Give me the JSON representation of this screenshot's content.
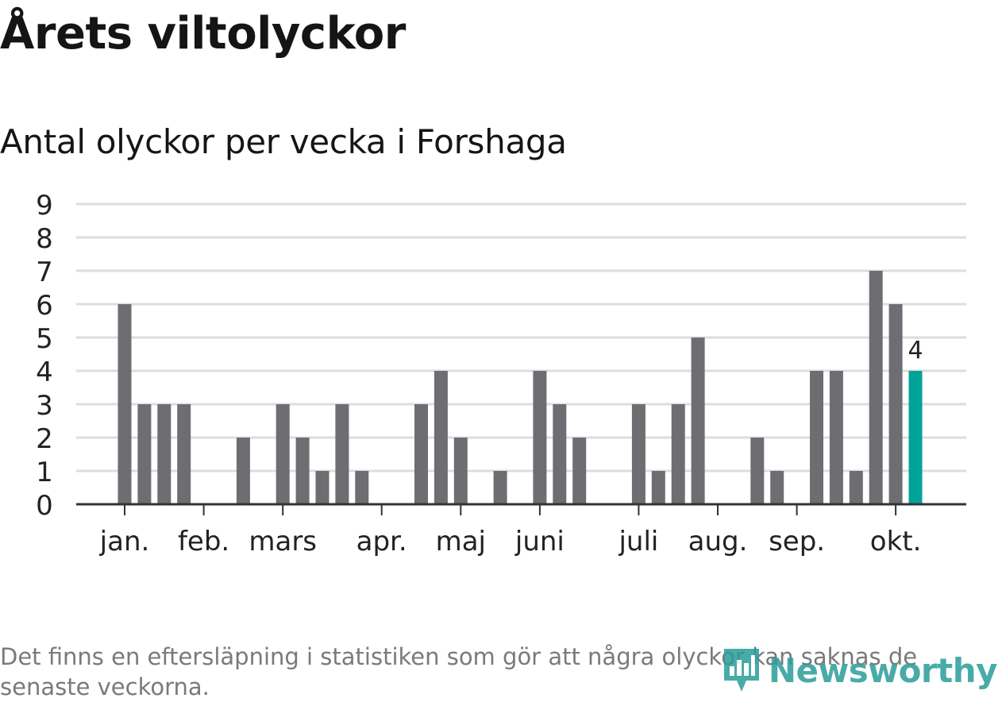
{
  "title": "Årets viltolyckor",
  "subtitle": "Antal olyckor per vecka i Forshaga",
  "footnote": "Det finns en eftersläpning i statistiken som gör att några olyckor kan saknas de senaste veckorna.",
  "logo": {
    "text": "Newsworthy",
    "icon": "bar-chart-pin-icon"
  },
  "colors": {
    "bar": "#6e6d72",
    "highlight": "#00a39a",
    "grid": "#dddddd",
    "axis": "#333333",
    "text": "#222222",
    "logo": "#2a9d9a"
  },
  "chart_data": {
    "type": "bar",
    "title": "Årets viltolyckor",
    "subtitle": "Antal olyckor per vecka i Forshaga",
    "xlabel": "",
    "ylabel": "",
    "ylim": [
      0,
      9
    ],
    "yticks": [
      "0",
      "1",
      "2",
      "3",
      "4",
      "5",
      "6",
      "7",
      "8",
      "9"
    ],
    "grid": true,
    "values": [
      6,
      3,
      3,
      3,
      0,
      0,
      2,
      0,
      3,
      2,
      1,
      3,
      1,
      0,
      0,
      3,
      4,
      2,
      0,
      1,
      0,
      4,
      3,
      2,
      0,
      0,
      3,
      1,
      3,
      5,
      0,
      0,
      2,
      1,
      0,
      4,
      4,
      1,
      7,
      6,
      4
    ],
    "highlight_index": 40,
    "highlight_label": "4",
    "month_ticks": [
      {
        "label": "jan.",
        "week_pos": 0.0
      },
      {
        "label": "feb.",
        "week_pos": 4.0
      },
      {
        "label": "mars",
        "week_pos": 8.0
      },
      {
        "label": "apr.",
        "week_pos": 13.0
      },
      {
        "label": "maj",
        "week_pos": 17.0
      },
      {
        "label": "juni",
        "week_pos": 21.0
      },
      {
        "label": "juli",
        "week_pos": 26.0
      },
      {
        "label": "aug.",
        "week_pos": 30.0
      },
      {
        "label": "sep.",
        "week_pos": 34.0
      },
      {
        "label": "okt.",
        "week_pos": 39.0
      }
    ]
  }
}
